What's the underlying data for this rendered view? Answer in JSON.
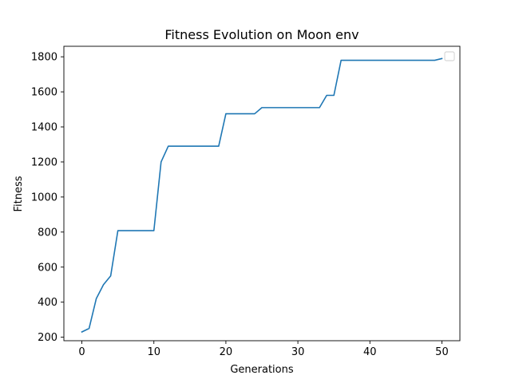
{
  "chart_data": {
    "type": "line",
    "title": "Fitness Evolution on Moon env",
    "xlabel": "Generations",
    "ylabel": "Fitness",
    "xlim": [
      -2.5,
      52.5
    ],
    "ylim": [
      180,
      1860
    ],
    "xticks": [
      0,
      10,
      20,
      30,
      40,
      50
    ],
    "yticks": [
      200,
      400,
      600,
      800,
      1000,
      1200,
      1400,
      1600,
      1800
    ],
    "grid": false,
    "legend": "top-right",
    "line_color": "#1f77b4",
    "series": [
      {
        "x": [
          0,
          1,
          2,
          3,
          4,
          5,
          6,
          7,
          8,
          9,
          10,
          11,
          12,
          13,
          14,
          15,
          16,
          17,
          18,
          19,
          20,
          21,
          22,
          23,
          24,
          25,
          26,
          27,
          28,
          29,
          30,
          31,
          32,
          33,
          34,
          35,
          36,
          37,
          38,
          39,
          40,
          41,
          42,
          43,
          44,
          45,
          46,
          47,
          48,
          49,
          50
        ],
        "values": [
          230,
          250,
          420,
          500,
          550,
          808,
          808,
          808,
          808,
          808,
          808,
          1200,
          1290,
          1290,
          1290,
          1290,
          1290,
          1290,
          1290,
          1290,
          1475,
          1475,
          1475,
          1475,
          1475,
          1510,
          1510,
          1510,
          1510,
          1510,
          1510,
          1510,
          1510,
          1510,
          1580,
          1580,
          1780,
          1780,
          1780,
          1780,
          1780,
          1780,
          1780,
          1780,
          1780,
          1780,
          1780,
          1780,
          1780,
          1780,
          1790
        ]
      }
    ]
  }
}
